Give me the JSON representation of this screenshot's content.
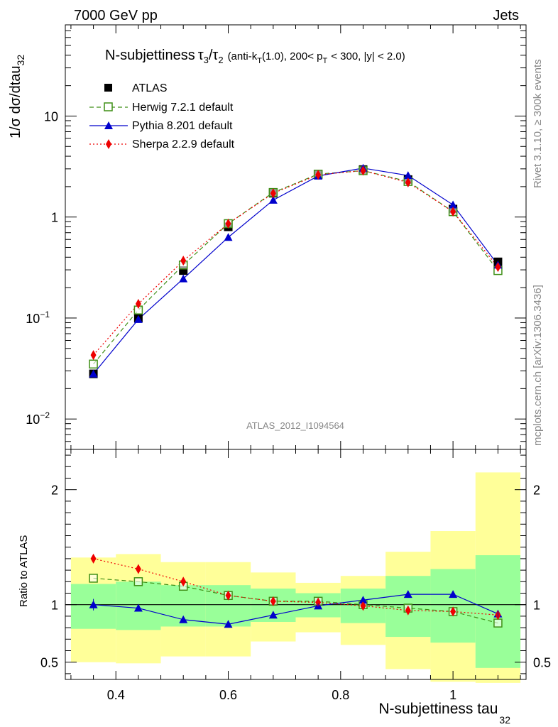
{
  "header": {
    "energy": "7000 GeV pp",
    "category": "Jets"
  },
  "side": {
    "rivet": "Rivet 3.1.10, ≥ 300k events",
    "mcplots": "mcplots.cern.ch [arXiv:1306.3436]"
  },
  "watermark": "ATLAS_2012_I1094564",
  "title": {
    "main": "N-subjettiness",
    "t1": "τ",
    "s1": "3",
    "slash": "/",
    "t2": "τ",
    "s2": "2",
    "p1": "(anti-k",
    "pk": "T",
    "p2": "(1.0), 200< p",
    "pT": "T",
    "p3": "< 300, |y| < 2.0)"
  },
  "ylabel_main": {
    "base": "1/σ dσ/dtau",
    "sub": "32"
  },
  "ylabel_ratio": "Ratio to ATLAS",
  "xlabel": {
    "base": "N-subjettiness tau",
    "sub": "32"
  },
  "legend": [
    "ATLAS",
    "Herwig 7.2.1 default",
    "Pythia 8.201 default",
    "Sherpa 2.2.9 default"
  ],
  "colors": {
    "atlas": "#000000",
    "herwig": "#3f8f16",
    "pythia": "#0000cc",
    "sherpa": "#ee0000",
    "band_inner": "#99ff99",
    "band_outer": "#ffff99"
  },
  "chart_data": [
    {
      "type": "line",
      "yscale": "log",
      "xlim": [
        0.31,
        1.13
      ],
      "ylim": [
        0.005,
        80
      ],
      "yticks": [
        {
          "v": 0.01,
          "b": "10",
          "e": "−2"
        },
        {
          "v": 0.1,
          "b": "10",
          "e": "−1"
        },
        {
          "v": 1,
          "b": "1",
          "e": ""
        },
        {
          "v": 10,
          "b": "10",
          "e": ""
        }
      ],
      "x": [
        0.36,
        0.44,
        0.52,
        0.6,
        0.68,
        0.76,
        0.84,
        0.92,
        1.0,
        1.08
      ],
      "series": [
        {
          "name": "ATLAS",
          "values": [
            0.028,
            0.1,
            0.295,
            0.8,
            1.72,
            2.62,
            2.95,
            2.35,
            1.2,
            0.36
          ]
        },
        {
          "name": "Herwig 7.2.1 default",
          "values": [
            0.035,
            0.12,
            0.335,
            0.86,
            1.75,
            2.66,
            2.88,
            2.25,
            1.13,
            0.295
          ]
        },
        {
          "name": "Pythia 8.201 default",
          "values": [
            0.028,
            0.097,
            0.245,
            0.63,
            1.47,
            2.55,
            3.05,
            2.58,
            1.32,
            0.335
          ]
        },
        {
          "name": "Sherpa 2.2.9 default",
          "values": [
            0.043,
            0.138,
            0.37,
            0.86,
            1.72,
            2.62,
            2.88,
            2.2,
            1.13,
            0.32
          ]
        }
      ]
    },
    {
      "type": "line",
      "ylabel": "Ratio to ATLAS",
      "xlabel": "N-subjettiness tau32",
      "xlim": [
        0.31,
        1.13
      ],
      "ylim": [
        0.35,
        2.35
      ],
      "xticks": [
        "0.4",
        "0.6",
        "0.8",
        "1"
      ],
      "yticks": [
        "0.5",
        "1",
        "2"
      ],
      "x": [
        0.36,
        0.44,
        0.52,
        0.6,
        0.68,
        0.76,
        0.84,
        0.92,
        1.0,
        1.08
      ],
      "bins": [
        [
          0.32,
          0.4
        ],
        [
          0.4,
          0.48
        ],
        [
          0.48,
          0.56
        ],
        [
          0.56,
          0.64
        ],
        [
          0.64,
          0.72
        ],
        [
          0.72,
          0.8
        ],
        [
          0.8,
          0.88
        ],
        [
          0.88,
          0.96
        ],
        [
          0.96,
          1.04
        ],
        [
          1.04,
          1.12
        ]
      ],
      "band_inner": [
        [
          0.79,
          1.18
        ],
        [
          0.78,
          1.2
        ],
        [
          0.81,
          1.17
        ],
        [
          0.81,
          1.17
        ],
        [
          0.85,
          1.14
        ],
        [
          0.89,
          1.1
        ],
        [
          0.84,
          1.14
        ],
        [
          0.72,
          1.25
        ],
        [
          0.67,
          1.31
        ],
        [
          0.45,
          1.43
        ]
      ],
      "band_outer": [
        [
          0.5,
          1.41
        ],
        [
          0.49,
          1.44
        ],
        [
          0.55,
          1.37
        ],
        [
          0.55,
          1.37
        ],
        [
          0.68,
          1.28
        ],
        [
          0.76,
          1.19
        ],
        [
          0.65,
          1.25
        ],
        [
          0.44,
          1.46
        ],
        [
          0.33,
          1.64
        ],
        [
          0.32,
          2.15
        ]
      ],
      "series": [
        {
          "name": "Herwig 7.2.1 default",
          "values": [
            1.23,
            1.2,
            1.16,
            1.08,
            1.03,
            1.03,
            1.0,
            0.97,
            0.94,
            0.84
          ]
        },
        {
          "name": "Pythia 8.201 default",
          "values": [
            1.0,
            0.97,
            0.87,
            0.83,
            0.91,
            0.99,
            1.04,
            1.09,
            1.09,
            0.92
          ]
        },
        {
          "name": "Sherpa 2.2.9 default",
          "values": [
            1.4,
            1.31,
            1.2,
            1.08,
            1.03,
            1.02,
            0.99,
            0.95,
            0.94,
            0.91
          ]
        }
      ],
      "atlas_error": [
        0.05,
        0.02,
        0.02,
        0.02,
        0.02,
        0.02,
        0.02,
        0.02,
        0.02,
        0.03
      ]
    }
  ]
}
